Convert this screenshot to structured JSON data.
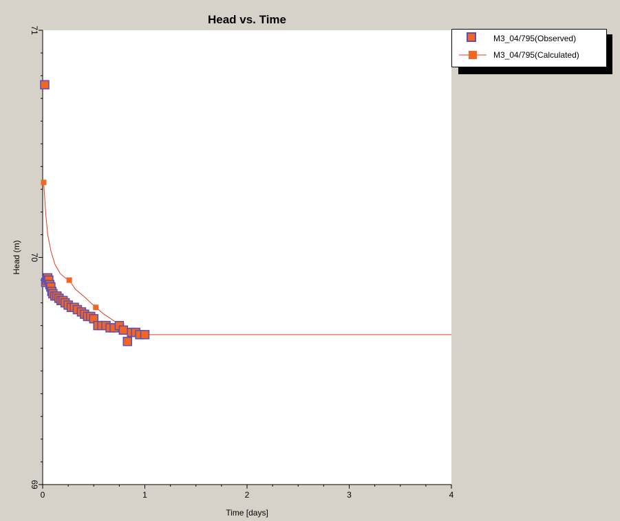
{
  "chart_data": {
    "type": "scatter",
    "title": "Head vs. Time",
    "xlabel": "Time  [days]",
    "ylabel": "Head (m)",
    "xlim": [
      0,
      4
    ],
    "ylim": [
      69,
      71
    ],
    "x_ticks": [
      "0",
      "1",
      "2",
      "3",
      "4"
    ],
    "y_ticks": [
      "69",
      "70",
      "71"
    ],
    "grid": false,
    "legend_position": "top-right outside",
    "series": [
      {
        "name": "M3_04/795(Observed)",
        "kind": "markers",
        "color": "#f26522",
        "edge_color": "#5b4fb5",
        "x": [
          0.02,
          0.03,
          0.04,
          0.05,
          0.06,
          0.07,
          0.08,
          0.09,
          0.1,
          0.12,
          0.14,
          0.16,
          0.18,
          0.2,
          0.22,
          0.25,
          0.28,
          0.31,
          0.34,
          0.38,
          0.41,
          0.44,
          0.47,
          0.5,
          0.54,
          0.58,
          0.62,
          0.66,
          0.7,
          0.75,
          0.79,
          0.83,
          0.87,
          0.91,
          0.95,
          1.0
        ],
        "y": [
          70.76,
          69.89,
          69.9,
          69.91,
          69.9,
          69.88,
          69.87,
          69.85,
          69.84,
          69.83,
          69.83,
          69.82,
          69.81,
          69.81,
          69.8,
          69.79,
          69.78,
          69.78,
          69.77,
          69.76,
          69.75,
          69.74,
          69.74,
          69.73,
          69.7,
          69.7,
          69.7,
          69.69,
          69.69,
          69.7,
          69.68,
          69.63,
          69.67,
          69.67,
          69.66,
          69.66
        ]
      },
      {
        "name": "M3_04/795(Calculated)",
        "kind": "line-with-markers",
        "color": "#f26522",
        "marker_x": [
          0.01,
          0.26,
          0.52,
          0.77
        ],
        "marker_y": [
          70.33,
          69.9,
          69.78,
          69.7
        ],
        "x": [
          0.01,
          0.03,
          0.05,
          0.08,
          0.12,
          0.17,
          0.22,
          0.26,
          0.32,
          0.4,
          0.52,
          0.6,
          0.7,
          0.77,
          0.85,
          0.92,
          1.0,
          1.5,
          2.0,
          2.5,
          3.0,
          3.5,
          4.0
        ],
        "y": [
          70.33,
          70.19,
          70.1,
          70.03,
          69.97,
          69.93,
          69.91,
          69.9,
          69.86,
          69.83,
          69.78,
          69.75,
          69.72,
          69.7,
          69.68,
          69.67,
          69.66,
          69.66,
          69.66,
          69.66,
          69.66,
          69.66,
          69.66
        ]
      }
    ]
  }
}
